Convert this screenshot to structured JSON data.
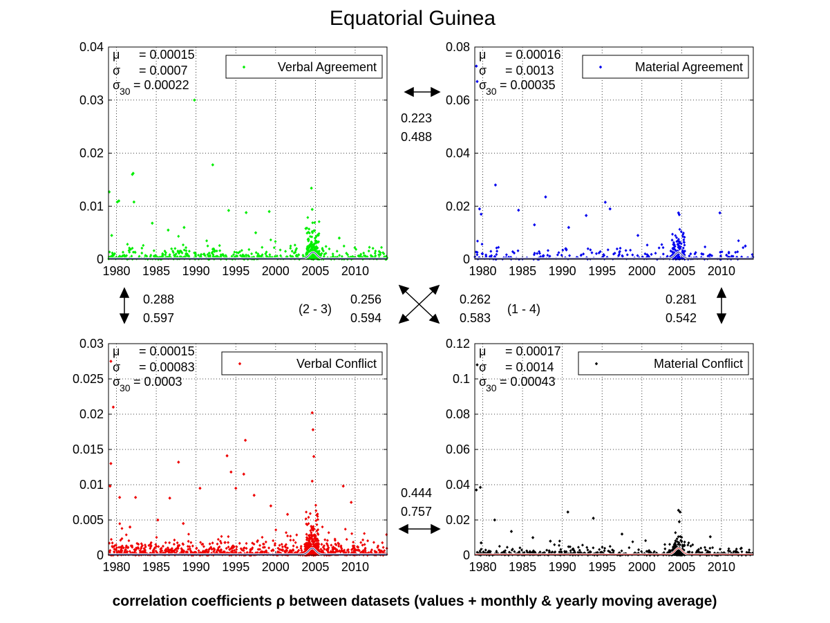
{
  "title": "Equatorial Guinea",
  "footer": "correlation coefficients ρ between datasets (values + monthly & yearly moving average)",
  "stat_labels": {
    "mu": "μ",
    "sigma": "σ",
    "sigma30": "σ",
    "sub30": "30"
  },
  "correlations": {
    "top_pair": [
      "0.223",
      "0.488"
    ],
    "left_pair": [
      "0.288",
      "0.597"
    ],
    "diag_left": [
      "0.256",
      "0.594"
    ],
    "diag_left_tag": "(2 - 3)",
    "diag_right": [
      "0.262",
      "0.583"
    ],
    "diag_right_tag": "(1 - 4)",
    "right_pair": [
      "0.281",
      "0.542"
    ],
    "bottom_pair": [
      "0.444",
      "0.757"
    ]
  },
  "chart_data": [
    {
      "type": "scatter",
      "legend": "Verbal Agreement",
      "color": "#00ee00",
      "ylim": [
        0,
        0.04
      ],
      "yticks": [
        "0",
        "0.01",
        "0.02",
        "0.03",
        "0.04"
      ],
      "xlim": [
        1979,
        2014
      ],
      "xticks": [
        "1980",
        "1985",
        "1990",
        "1995",
        "2000",
        "2005",
        "2010"
      ],
      "stats": {
        "mu": "= 0.00015",
        "sigma": "= 0.0007",
        "sigma30": "= 0.00022"
      },
      "outliers": [
        [
          1979.1,
          0.0127
        ],
        [
          1979.4,
          0.0045
        ],
        [
          1980.1,
          0.0108
        ],
        [
          1980.3,
          0.011
        ],
        [
          1982.0,
          0.016
        ],
        [
          1982.1,
          0.0162
        ],
        [
          1982.2,
          0.0108
        ],
        [
          1989.8,
          0.03
        ],
        [
          1992.1,
          0.0178
        ],
        [
          1994.1,
          0.0092
        ],
        [
          1996.3,
          0.0088
        ],
        [
          1999.2,
          0.009
        ],
        [
          2004.5,
          0.0134
        ],
        [
          2004.6,
          0.0094
        ],
        [
          2003.8,
          0.0058
        ],
        [
          1986.5,
          0.0055
        ],
        [
          1988.5,
          0.006
        ],
        [
          1984.5,
          0.0068
        ],
        [
          1997.5,
          0.005
        ],
        [
          2008.0,
          0.004
        ]
      ],
      "density": {
        "seed": 11,
        "n": 620,
        "scale": 0.0016,
        "max": 0.008,
        "peak": 2004.7
      }
    },
    {
      "type": "scatter",
      "legend": "Material Agreement",
      "color": "#0000ee",
      "ylim": [
        0,
        0.08
      ],
      "yticks": [
        "0",
        "0.02",
        "0.04",
        "0.06",
        "0.08"
      ],
      "xlim": [
        1979,
        2014
      ],
      "xticks": [
        "1980",
        "1985",
        "1990",
        "1995",
        "2000",
        "2005",
        "2010"
      ],
      "stats": {
        "mu": "= 0.00016",
        "sigma": "= 0.0013",
        "sigma30": "= 0.00035"
      },
      "outliers": [
        [
          1979.2,
          0.0728
        ],
        [
          1979.3,
          0.067
        ],
        [
          1979.6,
          0.019
        ],
        [
          1979.8,
          0.017
        ],
        [
          1981.6,
          0.028
        ],
        [
          1984.5,
          0.0185
        ],
        [
          1987.9,
          0.0235
        ],
        [
          1993.0,
          0.0165
        ],
        [
          1995.4,
          0.0215
        ],
        [
          1996.0,
          0.019
        ],
        [
          2004.6,
          0.0175
        ],
        [
          2004.7,
          0.0168
        ],
        [
          2009.8,
          0.0175
        ],
        [
          1990.8,
          0.012
        ],
        [
          1986.5,
          0.013
        ],
        [
          1999.5,
          0.009
        ],
        [
          2013.0,
          0.005
        ]
      ],
      "density": {
        "seed": 23,
        "n": 300,
        "scale": 0.0035,
        "max": 0.016,
        "peak": 2004.6
      }
    },
    {
      "type": "scatter",
      "legend": "Verbal Conflict",
      "color": "#ee0000",
      "ylim": [
        0,
        0.03
      ],
      "yticks": [
        "0",
        "0.005",
        "0.01",
        "0.015",
        "0.02",
        "0.025",
        "0.03"
      ],
      "xlim": [
        1979,
        2014
      ],
      "xticks": [
        "1980",
        "1985",
        "1990",
        "1995",
        "2000",
        "2005",
        "2010"
      ],
      "stats": {
        "mu": "= 0.00015",
        "sigma": "= 0.00083",
        "sigma30": "= 0.0003"
      },
      "outliers": [
        [
          1979.3,
          0.0275
        ],
        [
          1979.6,
          0.021
        ],
        [
          1979.3,
          0.013
        ],
        [
          1979.2,
          0.0098
        ],
        [
          1980.4,
          0.0082
        ],
        [
          1981.7,
          0.004
        ],
        [
          1982.4,
          0.0082
        ],
        [
          1985.2,
          0.005
        ],
        [
          1986.7,
          0.0081
        ],
        [
          1987.8,
          0.0132
        ],
        [
          1988.4,
          0.0045
        ],
        [
          1990.5,
          0.0095
        ],
        [
          1993.9,
          0.0141
        ],
        [
          1994.4,
          0.0118
        ],
        [
          1995.0,
          0.0095
        ],
        [
          1996.2,
          0.0163
        ],
        [
          1996.0,
          0.0115
        ],
        [
          1997.3,
          0.0085
        ],
        [
          2004.6,
          0.0202
        ],
        [
          2004.7,
          0.0178
        ],
        [
          2004.8,
          0.014
        ],
        [
          2004.6,
          0.0105
        ],
        [
          2008.5,
          0.0098
        ],
        [
          2009.5,
          0.0075
        ],
        [
          1999.4,
          0.007
        ],
        [
          2001.5,
          0.0058
        ]
      ],
      "density": {
        "seed": 37,
        "n": 1100,
        "scale": 0.0015,
        "max": 0.0095,
        "peak": 2004.6
      }
    },
    {
      "type": "scatter",
      "legend": "Material Conflict",
      "color": "#000000",
      "ylim": [
        0,
        0.12
      ],
      "yticks": [
        "0",
        "0.02",
        "0.04",
        "0.06",
        "0.08",
        "0.1",
        "0.12"
      ],
      "xlim": [
        1979,
        2014
      ],
      "xticks": [
        "1980",
        "1985",
        "1990",
        "1995",
        "2000",
        "2005",
        "2010"
      ],
      "stats": {
        "mu": "= 0.00017",
        "sigma": "= 0.0014",
        "sigma30": "= 0.00043"
      },
      "outliers": [
        [
          1979.3,
          0.108
        ],
        [
          1979.2,
          0.037
        ],
        [
          1979.7,
          0.0385
        ],
        [
          1979.8,
          0.007
        ],
        [
          1981.5,
          0.02
        ],
        [
          1983.6,
          0.0135
        ],
        [
          1986.3,
          0.01
        ],
        [
          1990.7,
          0.0245
        ],
        [
          1993.9,
          0.021
        ],
        [
          1997.5,
          0.012
        ],
        [
          2004.6,
          0.0255
        ],
        [
          2004.8,
          0.0245
        ],
        [
          2004.7,
          0.019
        ],
        [
          2008.6,
          0.0105
        ],
        [
          2012.5,
          0.004
        ],
        [
          1988.5,
          0.008
        ]
      ],
      "density": {
        "seed": 53,
        "n": 560,
        "scale": 0.003,
        "max": 0.016,
        "peak": 2004.6
      }
    }
  ]
}
